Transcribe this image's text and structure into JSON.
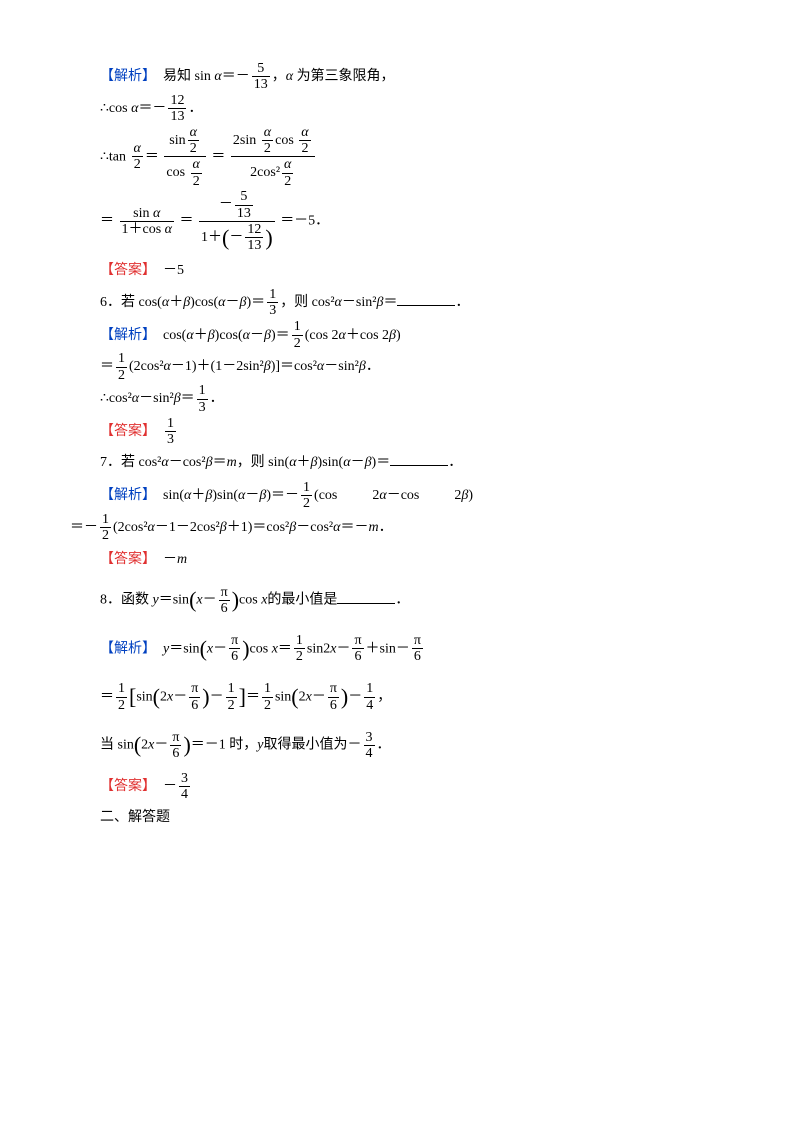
{
  "labels": {
    "analysis": "【解析】",
    "answer": "【答案】"
  },
  "colors": {
    "analysis": "#0040c0",
    "answer": "#e03030",
    "text": "#000000",
    "background": "#ffffff"
  },
  "typography": {
    "base_fontsize_pt": 11,
    "line_height": 2.2,
    "font_family": "SimSun"
  },
  "block5": {
    "l1a": "易知 sin ",
    "l1b": "α",
    "l1c": "＝－",
    "l1d_num": "5",
    "l1d_den": "13",
    "l1e": "，",
    "l1f": "α",
    "l1g": " 为第三象限角，",
    "l2a": "∴cos ",
    "l2b": "α",
    "l2c": "＝－",
    "l2d_num": "12",
    "l2d_den": "13",
    "l2e": "．",
    "l3a": "∴tan ",
    "l3b_num": "α",
    "l3b_den": "2",
    "l3c": "＝",
    "l3d_num_a": "sin",
    "l3d_num_b_num": "α",
    "l3d_num_b_den": "2",
    "l3d_den_a": "cos ",
    "l3d_den_b_num": "α",
    "l3d_den_b_den": "2",
    "l3e": "＝",
    "l3f_num_a": "2sin ",
    "l3f_num_b_num": "α",
    "l3f_num_b_den": "2",
    "l3f_num_c": "cos ",
    "l3f_num_d_num": "α",
    "l3f_num_d_den": "2",
    "l3f_den_a": "2cos²",
    "l3f_den_b_num": "α",
    "l3f_den_b_den": "2",
    "l4a": "＝",
    "l4b_num_a": "sin ",
    "l4b_num_b": "α",
    "l4b_den_a": "1＋cos ",
    "l4b_den_b": "α",
    "l4c": "＝",
    "l4d_num_a": "－",
    "l4d_num_b_num": "5",
    "l4d_num_b_den": "13",
    "l4d_den_a": "1＋",
    "l4d_den_b": "－",
    "l4d_den_c_num": "12",
    "l4d_den_c_den": "13",
    "l4e": "＝－5．",
    "ans": "－5"
  },
  "block6": {
    "q_a": "6．若 cos(",
    "q_b": "α",
    "q_c": "＋",
    "q_d": "β",
    "q_e": ")cos(",
    "q_f": "α",
    "q_g": "－",
    "q_h": "β",
    "q_i": ")＝",
    "q_j_num": "1",
    "q_j_den": "3",
    "q_k": "，则 cos²",
    "q_l": "α",
    "q_m": "－sin²",
    "q_n": "β",
    "q_o": "＝",
    "q_p": "．",
    "s1a": "cos(",
    "s1b": "α",
    "s1c": "＋",
    "s1d": "β",
    "s1e": ")cos(",
    "s1f": "α",
    "s1g": "－",
    "s1h": "β",
    "s1i": ")＝",
    "s1j_num": "1",
    "s1j_den": "2",
    "s1k": "(cos 2",
    "s1l": "α",
    "s1m": "＋cos 2",
    "s1n": "β",
    "s1o": ")",
    "s2a": "＝",
    "s2b_num": "1",
    "s2b_den": "2",
    "s2c": "(2cos²",
    "s2d": "α",
    "s2e": "－1)＋(1－2sin²",
    "s2f": "β",
    "s2g": ")]＝cos²",
    "s2h": "α",
    "s2i": "－sin²",
    "s2j": "β",
    "s2k": "．",
    "s3a": "∴cos²",
    "s3b": "α",
    "s3c": "－sin²",
    "s3d": "β",
    "s3e": "＝",
    "s3f_num": "1",
    "s3f_den": "3",
    "s3g": "．",
    "ans_num": "1",
    "ans_den": "3"
  },
  "block7": {
    "q_a": "7．若 cos²",
    "q_b": "α",
    "q_c": "－cos²",
    "q_d": "β",
    "q_e": "＝",
    "q_f": "m",
    "q_g": "，则 sin(",
    "q_h": "α",
    "q_i": "＋",
    "q_j": "β",
    "q_k": ")sin(",
    "q_l": "α",
    "q_m": "－",
    "q_n": "β",
    "q_o": ")＝",
    "q_p": "．",
    "s1a": "sin(",
    "s1b": "α",
    "s1c": "＋",
    "s1d": "β",
    "s1e": ")sin(",
    "s1f": "α",
    "s1g": "－",
    "s1h": "β",
    "s1i": ")＝－",
    "s1j_num": "1",
    "s1j_den": "2",
    "s1k": "(cos          2",
    "s1l": "α",
    "s1m": "－cos          2",
    "s1n": "β",
    "s1o": ")",
    "s2a": "＝－",
    "s2b_num": "1",
    "s2b_den": "2",
    "s2c": "(2cos²",
    "s2d": "α",
    "s2e": "－1－2cos²",
    "s2f": "β",
    "s2g": "＋1)＝cos²",
    "s2h": "β",
    "s2i": "－cos²",
    "s2j": "α",
    "s2k": "＝－",
    "s2l": "m",
    "s2m": "．",
    "ans_a": "－",
    "ans_b": "m"
  },
  "block8": {
    "q_a": "8．函数 ",
    "q_b": "y",
    "q_c": "＝sin",
    "q_d": "x",
    "q_e": "－",
    "q_f_num": "π",
    "q_f_den": "6",
    "q_g": "cos ",
    "q_h": "x",
    "q_i": "的最小值是",
    "q_j": "．",
    "s1a": "y",
    "s1b": "＝sin",
    "s1c": "x",
    "s1d": "－",
    "s1e_num": "π",
    "s1e_den": "6",
    "s1f": "cos ",
    "s1g": "x",
    "s1h": "＝",
    "s1i_num": "1",
    "s1i_den": "2",
    "s1j": "sin2",
    "s1k": "x",
    "s1l": "－",
    "s1m_num": "π",
    "s1m_den": "6",
    "s1n": "＋sin－",
    "s1o_num": "π",
    "s1o_den": "6",
    "s2a": "＝",
    "s2b_num": "1",
    "s2b_den": "2",
    "s2c": "sin",
    "s2d": "2",
    "s2e": "x",
    "s2f": "－",
    "s2g_num": "π",
    "s2g_den": "6",
    "s2h": "－",
    "s2i_num": "1",
    "s2i_den": "2",
    "s2j": "＝",
    "s2k_num": "1",
    "s2k_den": "2",
    "s2l": "sin",
    "s2m": "2",
    "s2n": "x",
    "s2o": "－",
    "s2p_num": "π",
    "s2p_den": "6",
    "s2q": "－",
    "s2r_num": "1",
    "s2r_den": "4",
    "s2s": "，",
    "s3a": "当 sin",
    "s3b": "2",
    "s3c": "x",
    "s3d": "－",
    "s3e_num": "π",
    "s3e_den": "6",
    "s3f": "＝－1 时，",
    "s3g": "y",
    "s3h": "取得最小值为－",
    "s3i_num": "3",
    "s3i_den": "4",
    "s3j": "．",
    "ans_a": "－",
    "ans_num": "3",
    "ans_den": "4"
  },
  "section2": {
    "title": "二、解答题"
  }
}
